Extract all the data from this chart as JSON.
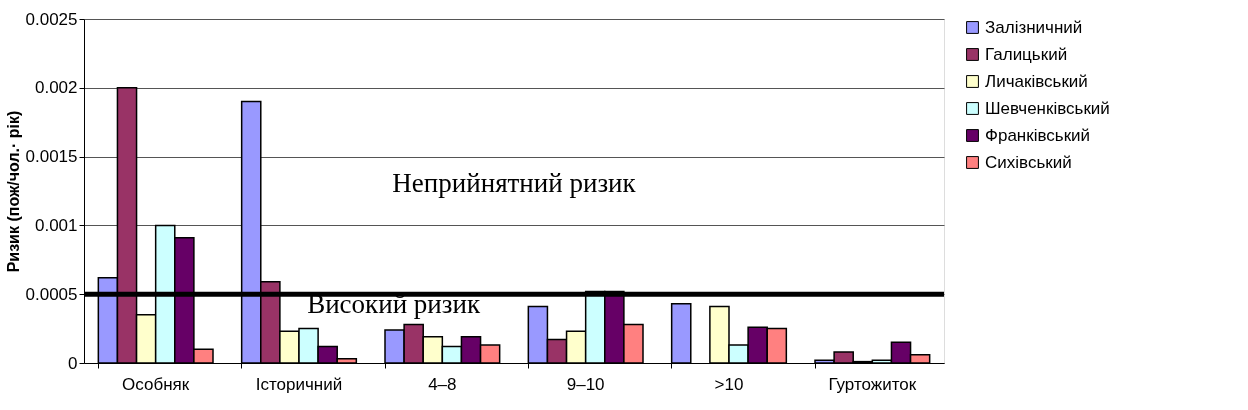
{
  "chart_data": {
    "type": "bar",
    "ylabel": "Ризик (пож/чол.· рік)",
    "categories": [
      "Особняк",
      "Історичний",
      "4–8",
      "9–10",
      ">10",
      "Гуртожиток"
    ],
    "series": [
      {
        "name": "Залізничний",
        "color": "#9999ff",
        "values": [
          0.00062,
          0.0019,
          0.00024,
          0.00041,
          0.00043,
          2e-05
        ]
      },
      {
        "name": "Галицький",
        "color": "#993366",
        "values": [
          0.002,
          0.00059,
          0.00028,
          0.00017,
          null,
          8e-05
        ]
      },
      {
        "name": "Личаківський",
        "color": "#ffffcc",
        "values": [
          0.00035,
          0.00023,
          0.00019,
          0.00023,
          0.00041,
          1e-05
        ]
      },
      {
        "name": "Шевченківський",
        "color": "#ccffff",
        "values": [
          0.001,
          0.00025,
          0.00012,
          0.00052,
          0.00013,
          2e-05
        ]
      },
      {
        "name": "Франківський",
        "color": "#660066",
        "values": [
          0.00091,
          0.00012,
          0.00019,
          0.00052,
          0.00026,
          0.00015
        ]
      },
      {
        "name": "Сихівський",
        "color": "#ff8080",
        "values": [
          0.0001,
          3e-05,
          0.00013,
          0.00028,
          0.00025,
          6e-05
        ]
      }
    ],
    "ylim": [
      0,
      0.0025
    ],
    "yticks": [
      0,
      0.0005,
      0.001,
      0.0015,
      0.002,
      0.0025
    ],
    "ref_lines": [
      {
        "axis": "y",
        "value": 0.0005,
        "color": "#000000"
      }
    ],
    "annotations": [
      "Неприйнятний ризик",
      "Високий ризик"
    ],
    "grid": "y",
    "legend": "right"
  }
}
